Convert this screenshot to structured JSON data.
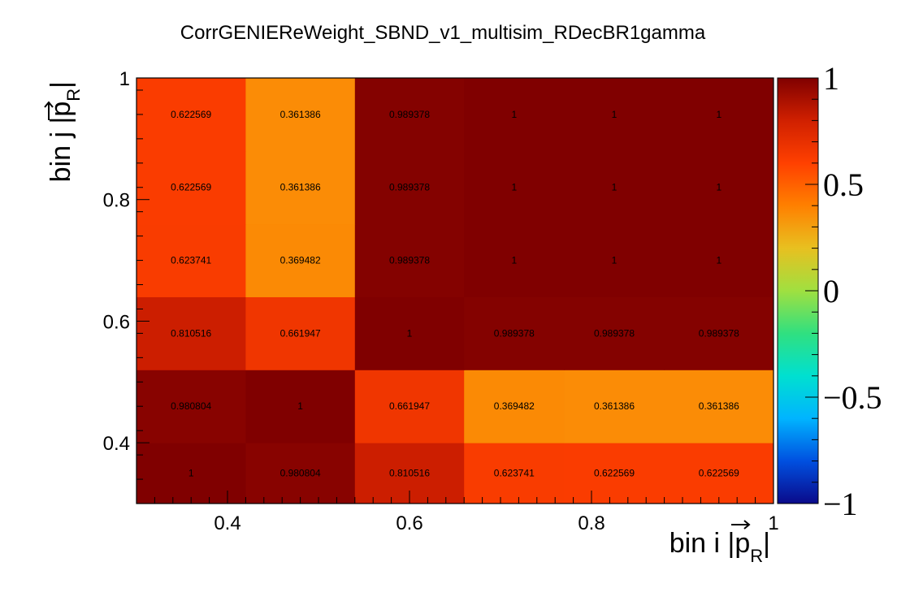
{
  "chart_data": {
    "type": "heatmap",
    "title": "CorrGENIEReWeight_SBND_v1_multisim_RDecBR1gamma",
    "xlabel": {
      "text": "bin i |",
      "p": "p",
      "sub": "R",
      "end": "|"
    },
    "ylabel": {
      "text": "bin j |",
      "p": "p",
      "sub": "R",
      "end": "|"
    },
    "x_edges": [
      0.3,
      0.42,
      0.54,
      0.66,
      0.77,
      0.88,
      1.0
    ],
    "y_edges": [
      0.3,
      0.4,
      0.52,
      0.64,
      0.76,
      0.88,
      1.0
    ],
    "xlim": [
      0.3,
      1.0
    ],
    "ylim": [
      0.3,
      1.0
    ],
    "x_ticks": [
      {
        "value": 0.4,
        "label": "0.4"
      },
      {
        "value": 0.6,
        "label": "0.6"
      },
      {
        "value": 0.8,
        "label": "0.8"
      },
      {
        "value": 1.0,
        "label": "1"
      }
    ],
    "y_ticks": [
      {
        "value": 0.4,
        "label": "0.4"
      },
      {
        "value": 0.6,
        "label": "0.6"
      },
      {
        "value": 0.8,
        "label": "0.8"
      },
      {
        "value": 1.0,
        "label": "1"
      }
    ],
    "z_range": [
      -1,
      1
    ],
    "z_ticks": [
      {
        "value": 1,
        "label": "1"
      },
      {
        "value": 0.5,
        "label": "0.5"
      },
      {
        "value": 0,
        "label": "0"
      },
      {
        "value": -0.5,
        "label": "−0.5"
      },
      {
        "value": -1,
        "label": "−1"
      }
    ],
    "values": [
      [
        1,
        0.980804,
        0.810516,
        0.623741,
        0.622569,
        0.622569
      ],
      [
        0.980804,
        1,
        0.661947,
        0.369482,
        0.361386,
        0.361386
      ],
      [
        0.810516,
        0.661947,
        1,
        0.989378,
        0.989378,
        0.989378
      ],
      [
        0.623741,
        0.369482,
        0.989378,
        1,
        1,
        1
      ],
      [
        0.622569,
        0.361386,
        0.989378,
        1,
        1,
        1
      ],
      [
        0.622569,
        0.361386,
        0.989378,
        1,
        1,
        1
      ]
    ],
    "labels": [
      [
        "1",
        "0.980804",
        "0.810516",
        "0.623741",
        "0.622569",
        "0.622569"
      ],
      [
        "0.980804",
        "1",
        "0.661947",
        "0.369482",
        "0.361386",
        "0.361386"
      ],
      [
        "0.810516",
        "0.661947",
        "1",
        "0.989378",
        "0.989378",
        "0.989378"
      ],
      [
        "0.623741",
        "0.369482",
        "0.989378",
        "1",
        "1",
        "1"
      ],
      [
        "0.622569",
        "0.361386",
        "0.989378",
        "1",
        "1",
        "1"
      ],
      [
        "0.622569",
        "0.361386",
        "0.989378",
        "1",
        "1",
        "1"
      ]
    ],
    "colormap": [
      "#0a0a8a",
      "#0050e0",
      "#00b4ff",
      "#00e0d0",
      "#30e080",
      "#a0e040",
      "#e8c020",
      "#ff8000",
      "#ff4000",
      "#d02000",
      "#800000"
    ]
  }
}
